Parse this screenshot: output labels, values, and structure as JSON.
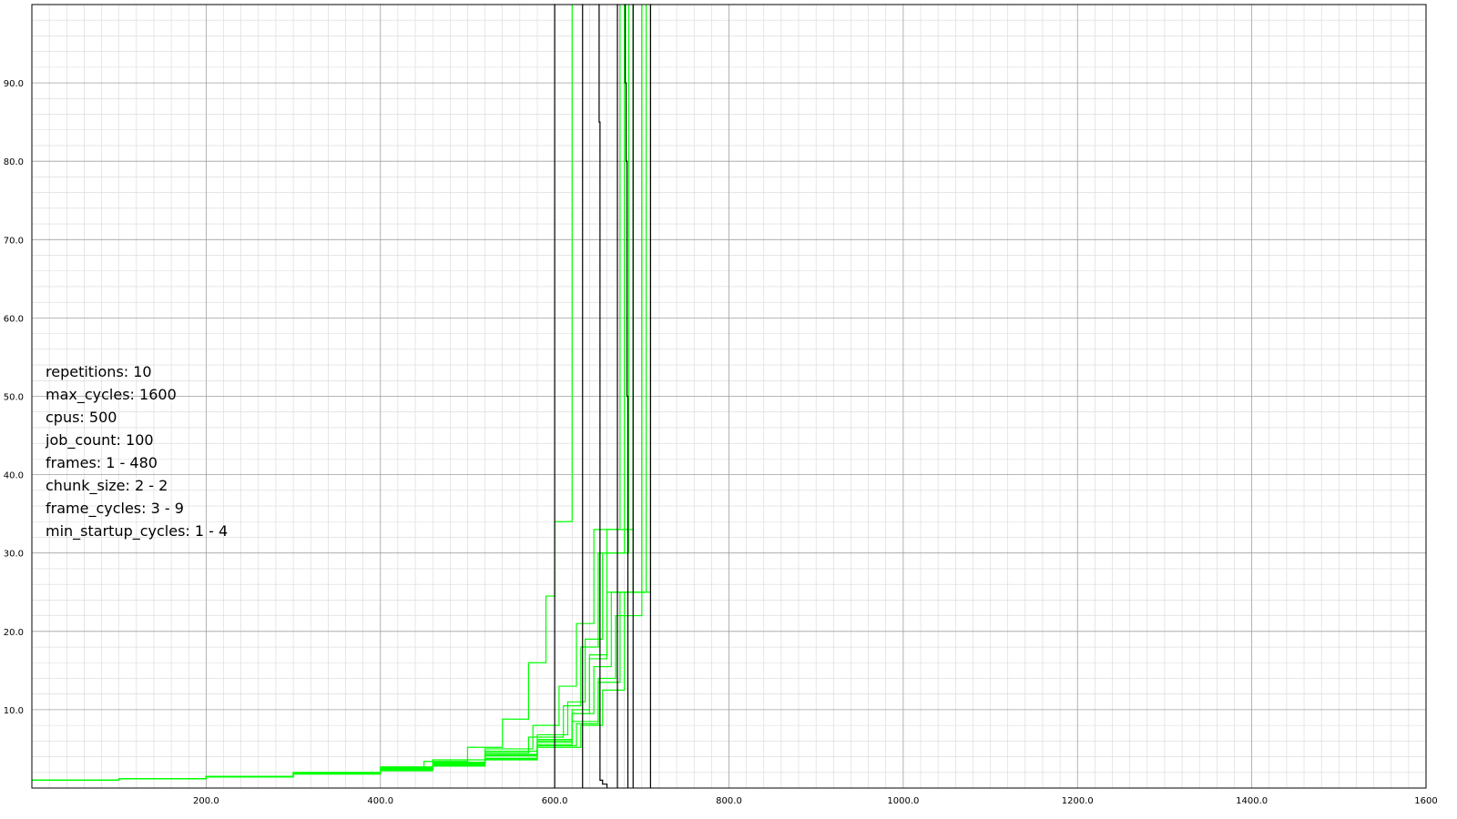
{
  "chart_data": {
    "type": "line",
    "title": "",
    "xlabel": "",
    "ylabel": "",
    "xlim": [
      0,
      1600
    ],
    "ylim": [
      0,
      100
    ],
    "grid": true,
    "x_ticks": [
      "200.0",
      "400.0",
      "600.0",
      "800.0",
      "1000.0",
      "1200.0",
      "1400.0",
      "1600"
    ],
    "y_ticks": [
      "10.0",
      "20.0",
      "30.0",
      "40.0",
      "50.0",
      "60.0",
      "70.0",
      "80.0",
      "90.0"
    ],
    "annotations": [
      "repetitions: 10",
      "max_cycles: 1600",
      "cpus: 500",
      "job_count: 100",
      "frames: 1 - 480",
      "chunk_size: 2 - 2",
      "frame_cycles: 3 - 9",
      "min_startup_cycles: 1 - 4"
    ],
    "colors": {
      "green": "#00ff00",
      "black": "#000000",
      "grid_major": "#a0a0a0",
      "grid_minor": "#d8d8d8"
    },
    "series": [
      {
        "color": "#00ff00",
        "x": [
          0,
          100,
          200,
          300,
          400,
          450,
          500,
          540,
          570,
          590,
          600,
          620
        ],
        "y": [
          1.0,
          1.2,
          1.5,
          1.9,
          2.6,
          3.4,
          5.2,
          8.8,
          16.0,
          24.5,
          34,
          100
        ]
      },
      {
        "color": "#00ff00",
        "x": [
          0,
          100,
          200,
          300,
          400,
          460,
          520,
          570,
          610,
          630,
          650,
          680
        ],
        "y": [
          1.0,
          1.2,
          1.5,
          1.9,
          2.5,
          3.2,
          4.5,
          6.5,
          10.5,
          18,
          30,
          100
        ]
      },
      {
        "color": "#00ff00",
        "x": [
          0,
          100,
          200,
          300,
          400,
          460,
          520,
          580,
          620,
          640,
          660,
          690
        ],
        "y": [
          1.0,
          1.2,
          1.5,
          1.9,
          2.4,
          3.0,
          4.2,
          6.0,
          9.5,
          16.5,
          25,
          100
        ]
      },
      {
        "color": "#00ff00",
        "x": [
          0,
          100,
          200,
          300,
          400,
          460,
          520,
          580,
          620,
          650,
          670,
          700
        ],
        "y": [
          1.0,
          1.2,
          1.5,
          1.8,
          2.3,
          2.9,
          3.8,
          5.5,
          8.5,
          14.0,
          22,
          100
        ]
      },
      {
        "color": "#00ff00",
        "x": [
          0,
          100,
          200,
          300,
          400,
          460,
          520,
          580,
          630,
          655,
          680,
          710
        ],
        "y": [
          1.0,
          1.2,
          1.4,
          1.8,
          2.2,
          2.8,
          3.6,
          5.2,
          8.0,
          12.5,
          25,
          100
        ]
      },
      {
        "color": "#00ff00",
        "x": [
          0,
          100,
          200,
          300,
          400,
          460,
          520,
          580,
          620,
          640,
          660,
          690
        ],
        "y": [
          1.0,
          1.2,
          1.5,
          1.9,
          2.5,
          3.1,
          4.3,
          6.2,
          10.0,
          17.0,
          33,
          100
        ]
      },
      {
        "color": "#00ff00",
        "x": [
          0,
          100,
          200,
          300,
          400,
          460,
          520,
          580,
          615,
          635,
          655,
          685
        ],
        "y": [
          1.0,
          1.2,
          1.5,
          1.9,
          2.6,
          3.3,
          4.7,
          6.8,
          11.0,
          19.0,
          30,
          100
        ]
      },
      {
        "color": "#00ff00",
        "x": [
          0,
          100,
          200,
          300,
          400,
          460,
          520,
          575,
          605,
          625,
          645,
          675
        ],
        "y": [
          1.0,
          1.2,
          1.5,
          2.0,
          2.7,
          3.6,
          5.0,
          8.0,
          13.0,
          21.0,
          33,
          100
        ]
      },
      {
        "color": "#00ff00",
        "x": [
          0,
          100,
          200,
          300,
          400,
          460,
          520,
          580,
          625,
          650,
          675,
          705
        ],
        "y": [
          1.0,
          1.2,
          1.5,
          1.8,
          2.3,
          2.9,
          3.7,
          5.4,
          8.2,
          13.5,
          25,
          100
        ]
      },
      {
        "color": "#00ff00",
        "x": [
          0,
          100,
          200,
          300,
          400,
          460,
          520,
          580,
          620,
          645,
          665,
          700
        ],
        "y": [
          1.0,
          1.2,
          1.5,
          1.9,
          2.4,
          3.0,
          4.1,
          5.8,
          9.5,
          15.5,
          25,
          100
        ]
      },
      {
        "color": "#000000",
        "x": [
          600,
          600,
          601
        ],
        "y": [
          0,
          100,
          100
        ]
      },
      {
        "color": "#000000",
        "x": [
          632,
          632,
          633
        ],
        "y": [
          0,
          100,
          100
        ]
      },
      {
        "color": "#000000",
        "x": [
          650,
          651,
          652,
          652,
          655,
          660
        ],
        "y": [
          100,
          85,
          50,
          1,
          0.5,
          0
        ]
      },
      {
        "color": "#000000",
        "x": [
          672,
          672,
          673
        ],
        "y": [
          0,
          100,
          100
        ]
      },
      {
        "color": "#000000",
        "x": [
          680,
          681,
          682,
          683,
          684
        ],
        "y": [
          100,
          90,
          80,
          50,
          0
        ]
      },
      {
        "color": "#000000",
        "x": [
          690,
          690,
          691
        ],
        "y": [
          0,
          100,
          100
        ]
      },
      {
        "color": "#000000",
        "x": [
          710,
          710,
          711
        ],
        "y": [
          0,
          100,
          100
        ]
      }
    ]
  }
}
